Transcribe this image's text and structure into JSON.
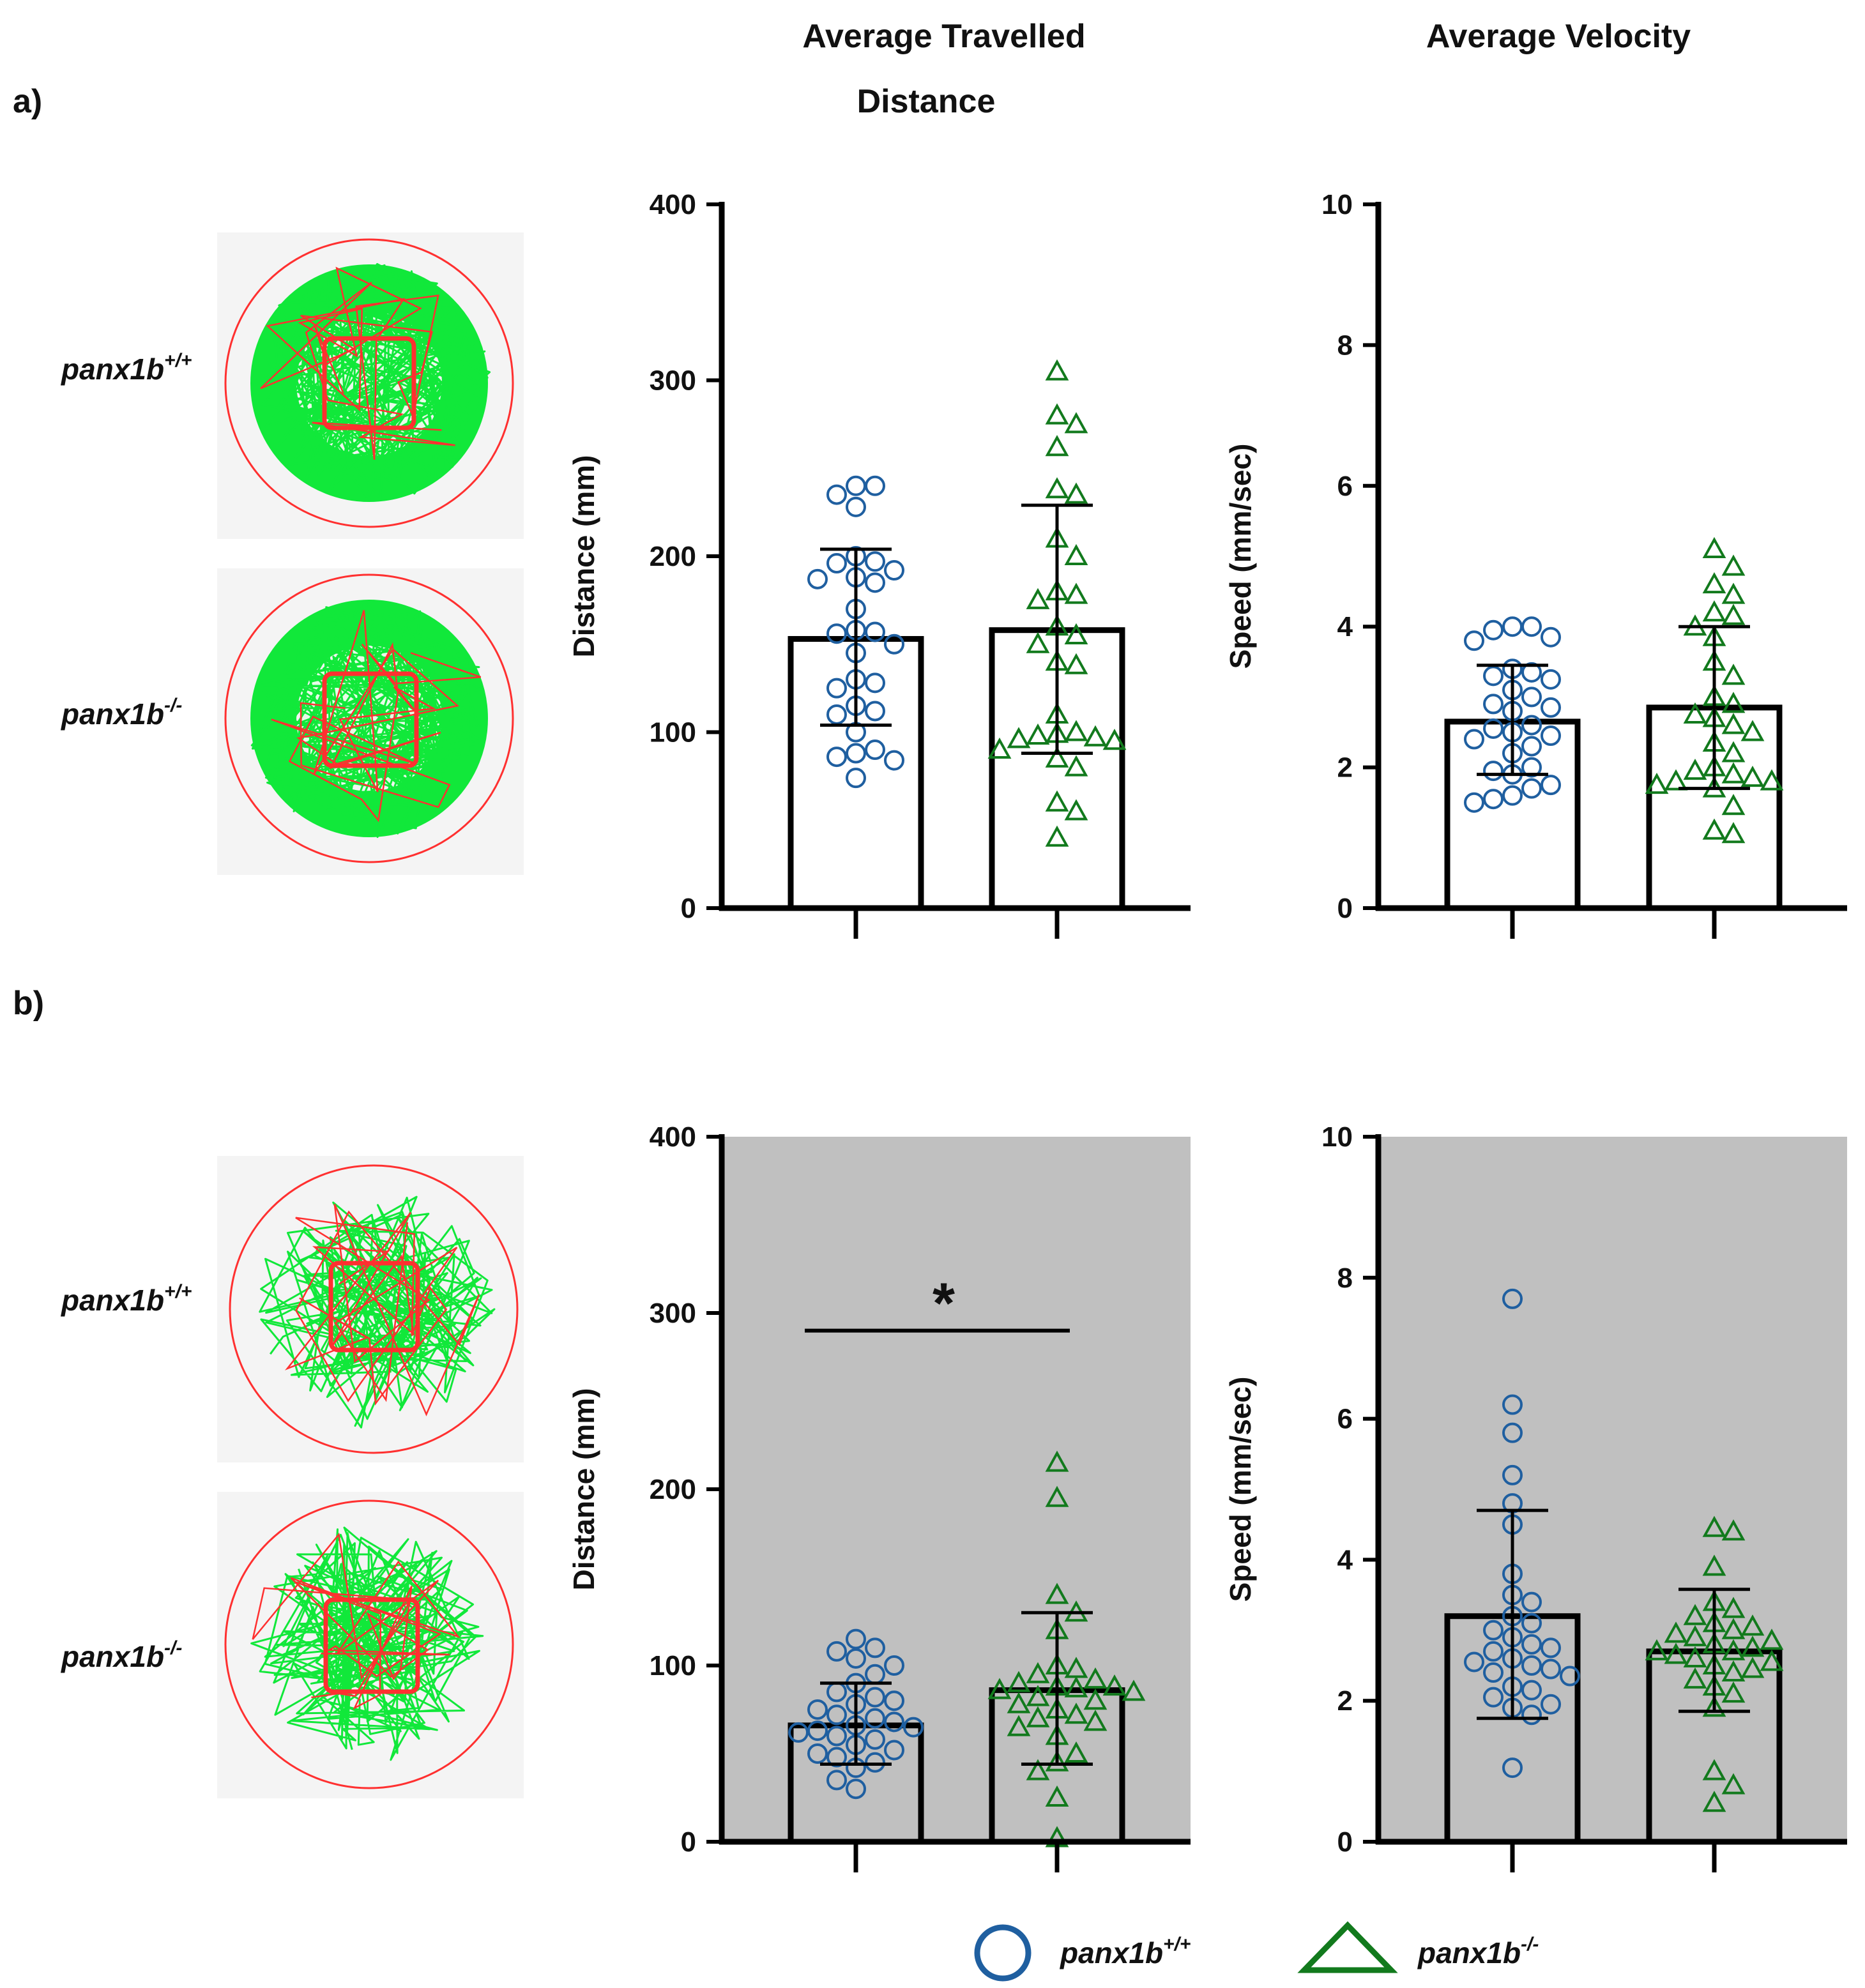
{
  "titles": {
    "col_distance_line1": "Average Travelled",
    "col_distance_line2": "Distance",
    "col_velocity": "Average Velocity"
  },
  "panels": {
    "a": "a)",
    "b": "b)"
  },
  "genotypes": {
    "wt": {
      "base": "panx1b",
      "sup": "+/+"
    },
    "ko": {
      "base": "panx1b",
      "sup": "-/-"
    }
  },
  "colors": {
    "wt": "#1f5fa0",
    "ko": "#127a1d",
    "shade": "#c0c0c0",
    "track": "#11e83a",
    "arena": "#ff3030"
  },
  "legend": {
    "wt_label": "panx1b",
    "wt_sup": "+/+",
    "ko_label": "panx1b",
    "ko_sup": "-/-"
  },
  "significance": {
    "marker": "*"
  },
  "chart_data": [
    {
      "id": "a-distance",
      "type": "bar",
      "ylabel": "Distance (mm)",
      "ylim": [
        0,
        400
      ],
      "yticks": [
        0,
        100,
        200,
        300,
        400
      ],
      "shaded": false,
      "categories": [
        "panx1b+/+",
        "panx1b-/-"
      ],
      "series": [
        {
          "name": "panx1b+/+",
          "mean": 153,
          "err_low": 104,
          "err_high": 204,
          "points": [
            240,
            240,
            235,
            228,
            200,
            197,
            196,
            192,
            188,
            187,
            185,
            170,
            158,
            157,
            156,
            150,
            145,
            130,
            128,
            125,
            115,
            112,
            110,
            100,
            90,
            88,
            86,
            84,
            74
          ]
        },
        {
          "name": "panx1b-/-",
          "mean": 158,
          "err_low": 88,
          "err_high": 229,
          "points": [
            305,
            280,
            275,
            262,
            238,
            235,
            210,
            200,
            180,
            178,
            175,
            160,
            155,
            150,
            140,
            138,
            110,
            100,
            99,
            98,
            97,
            96,
            95,
            90,
            85,
            80,
            60,
            55,
            40
          ]
        }
      ]
    },
    {
      "id": "a-velocity",
      "type": "bar",
      "ylabel": "Speed (mm/sec)",
      "ylim": [
        0,
        10
      ],
      "yticks": [
        0,
        2,
        4,
        6,
        8,
        10
      ],
      "shaded": false,
      "categories": [
        "panx1b+/+",
        "panx1b-/-"
      ],
      "series": [
        {
          "name": "panx1b+/+",
          "mean": 2.65,
          "err_low": 1.9,
          "err_high": 3.45,
          "points": [
            4.0,
            4.0,
            3.95,
            3.85,
            3.8,
            3.4,
            3.35,
            3.3,
            3.25,
            3.1,
            3.0,
            2.9,
            2.85,
            2.8,
            2.6,
            2.55,
            2.5,
            2.45,
            2.4,
            2.3,
            2.2,
            2.0,
            1.95,
            1.9,
            1.75,
            1.7,
            1.6,
            1.55,
            1.5
          ]
        },
        {
          "name": "panx1b-/-",
          "mean": 2.85,
          "err_low": 1.7,
          "err_high": 4.0,
          "points": [
            5.1,
            4.85,
            4.6,
            4.45,
            4.2,
            4.15,
            4.0,
            3.85,
            3.5,
            3.3,
            3.0,
            2.9,
            2.75,
            2.7,
            2.6,
            2.5,
            2.35,
            2.2,
            2.0,
            1.95,
            1.9,
            1.85,
            1.8,
            1.8,
            1.75,
            1.7,
            1.45,
            1.1,
            1.05
          ]
        }
      ]
    },
    {
      "id": "b-distance",
      "type": "bar",
      "ylabel": "Distance (mm)",
      "ylim": [
        0,
        400
      ],
      "yticks": [
        0,
        100,
        200,
        300,
        400
      ],
      "shaded": true,
      "significance": {
        "y": 290,
        "label": "*"
      },
      "categories": [
        "panx1b+/+",
        "panx1b-/-"
      ],
      "series": [
        {
          "name": "panx1b+/+",
          "mean": 66,
          "err_low": 44,
          "err_high": 90,
          "points": [
            115,
            110,
            108,
            104,
            100,
            95,
            90,
            85,
            82,
            80,
            78,
            75,
            72,
            70,
            68,
            66,
            65,
            63,
            62,
            60,
            58,
            55,
            52,
            50,
            48,
            45,
            42,
            35,
            30
          ]
        },
        {
          "name": "panx1b-/-",
          "mean": 86,
          "err_low": 44,
          "err_high": 130,
          "points": [
            215,
            195,
            140,
            130,
            120,
            100,
            98,
            95,
            92,
            90,
            88,
            88,
            87,
            86,
            85,
            82,
            80,
            78,
            75,
            72,
            70,
            68,
            65,
            60,
            50,
            45,
            40,
            25,
            2
          ]
        }
      ]
    },
    {
      "id": "b-velocity",
      "type": "bar",
      "ylabel": "Speed (mm/sec)",
      "ylim": [
        0,
        10
      ],
      "yticks": [
        0,
        2,
        4,
        6,
        8,
        10
      ],
      "shaded": true,
      "categories": [
        "panx1b+/+",
        "panx1b-/-"
      ],
      "series": [
        {
          "name": "panx1b+/+",
          "mean": 3.2,
          "err_low": 1.75,
          "err_high": 4.7,
          "points": [
            7.7,
            6.2,
            5.8,
            5.2,
            4.8,
            4.5,
            3.8,
            3.5,
            3.4,
            3.2,
            3.1,
            3.0,
            2.9,
            2.8,
            2.75,
            2.7,
            2.6,
            2.55,
            2.5,
            2.45,
            2.4,
            2.35,
            2.2,
            2.15,
            2.05,
            1.95,
            1.9,
            1.8,
            1.05
          ]
        },
        {
          "name": "panx1b-/-",
          "mean": 2.7,
          "err_low": 1.85,
          "err_high": 3.58,
          "points": [
            4.45,
            4.4,
            3.9,
            3.4,
            3.3,
            3.2,
            3.1,
            3.05,
            3.0,
            2.95,
            2.9,
            2.85,
            2.8,
            2.75,
            2.7,
            2.7,
            2.65,
            2.6,
            2.55,
            2.5,
            2.45,
            2.4,
            2.3,
            2.2,
            2.1,
            1.9,
            1.0,
            0.8,
            0.55
          ]
        }
      ]
    }
  ]
}
